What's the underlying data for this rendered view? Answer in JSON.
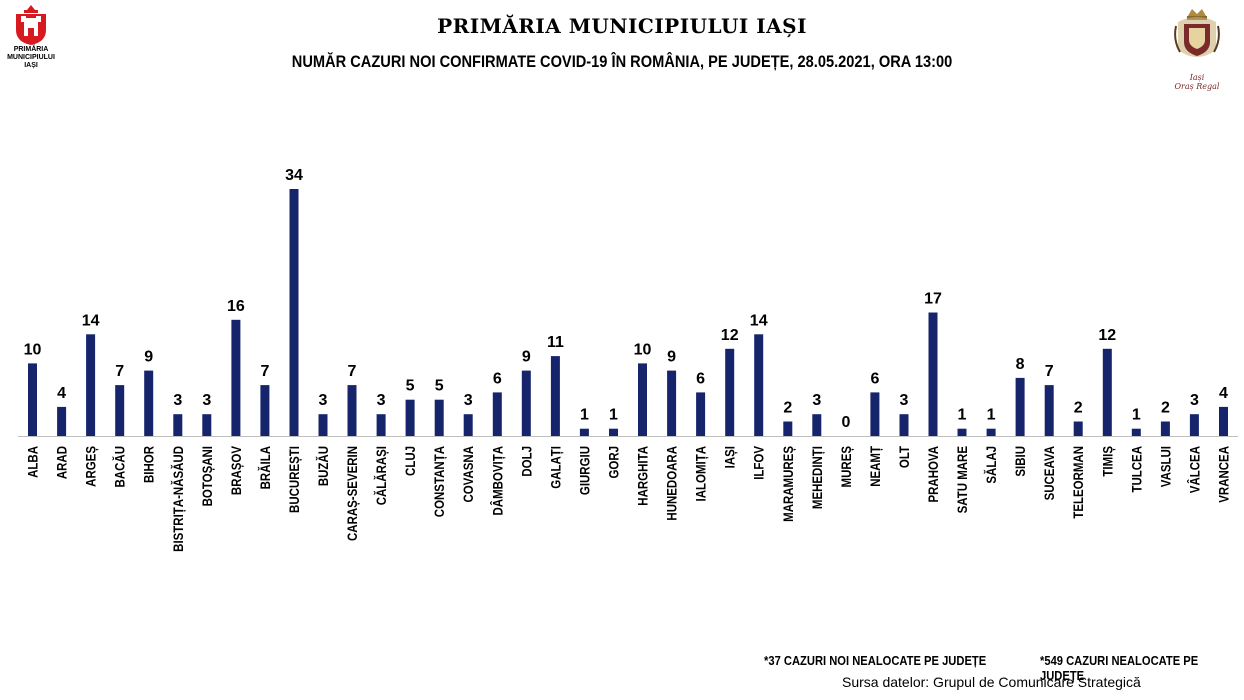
{
  "header": {
    "logo_left_text": [
      "PRIMĂRIA",
      "MUNICIPIULUI",
      "IAȘI"
    ],
    "logo_right_text": [
      "Iași",
      "Oraș Regal"
    ],
    "title": "PRIMĂRIA MUNICIPIULUI IAȘI",
    "subtitle": "NUMĂR CAZURI NOI CONFIRMATE COVID-19 ÎN ROMÂNIA, PE JUDEȚE, 28.05.2021, ORA 13:00"
  },
  "footer": {
    "note_left": "*37  CAZURI NOI NEALOCATE PE JUDEȚE",
    "note_right": "*549 CAZURI NEALOCATE PE JUDEȚE",
    "source": "Sursa datelor: Grupul de Comunicare Strategică"
  },
  "colors": {
    "bar": "#15246b",
    "axis": "#bfbfbf",
    "logo_red": "#d71920"
  },
  "chart_data": {
    "type": "bar",
    "title": "NUMĂR CAZURI NOI CONFIRMATE COVID-19 ÎN ROMÂNIA, PE JUDEȚE, 28.05.2021, ORA 13:00",
    "xlabel": "",
    "ylabel": "",
    "ylim": [
      0,
      34
    ],
    "grid": false,
    "legend": "none",
    "data_labels": true,
    "categories": [
      "ALBA",
      "ARAD",
      "ARGEȘ",
      "BACĂU",
      "BIHOR",
      "BISTRIȚA-NĂSĂUD",
      "BOTOȘANI",
      "BRAȘOV",
      "BRĂILA",
      "BUCUREȘTI",
      "BUZĂU",
      "CARAȘ-SEVERIN",
      "CĂLĂRAȘI",
      "CLUJ",
      "CONSTANȚA",
      "COVASNA",
      "DÂMBOVIȚA",
      "DOLJ",
      "GALAȚI",
      "GIURGIU",
      "GORJ",
      "HARGHITA",
      "HUNEDOARA",
      "IALOMIȚA",
      "IAȘI",
      "ILFOV",
      "MARAMUREȘ",
      "MEHEDINȚI",
      "MUREȘ",
      "NEAMȚ",
      "OLT",
      "PRAHOVA",
      "SATU MARE",
      "SĂLAJ",
      "SIBIU",
      "SUCEAVA",
      "TELEORMAN",
      "TIMIȘ",
      "TULCEA",
      "VASLUI",
      "VÂLCEA",
      "VRANCEA"
    ],
    "values": [
      10,
      4,
      14,
      7,
      9,
      3,
      3,
      16,
      7,
      34,
      3,
      7,
      3,
      5,
      5,
      3,
      6,
      9,
      11,
      1,
      1,
      10,
      9,
      6,
      12,
      14,
      2,
      3,
      0,
      6,
      3,
      17,
      1,
      1,
      8,
      7,
      2,
      12,
      1,
      2,
      3,
      4
    ]
  }
}
